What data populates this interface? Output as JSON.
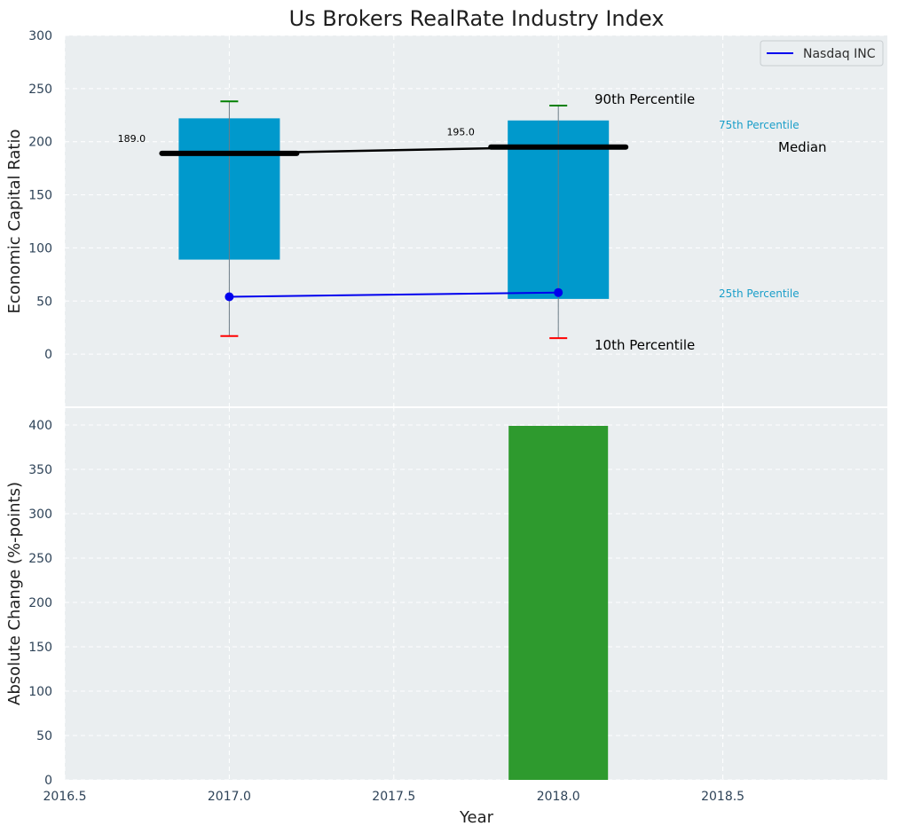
{
  "chart_data": [
    {
      "panel": "top",
      "type": "box-range",
      "title": "Us Brokers RealRate Industry Index",
      "ylabel": "Economic Capital Ratio",
      "ylim": [
        -50,
        300
      ],
      "yticks": [
        0,
        50,
        100,
        150,
        200,
        250,
        300
      ],
      "grid": true,
      "legend": {
        "entries": [
          "Nasdaq INC"
        ],
        "placement": "top-right"
      },
      "categories": [
        2017.0,
        2018.0
      ],
      "percentile_10": [
        17,
        15
      ],
      "percentile_25": [
        89,
        52
      ],
      "median": [
        189,
        195
      ],
      "percentile_75": [
        222,
        220
      ],
      "percentile_90": [
        238,
        234
      ],
      "median_labels": [
        "189.0",
        "195.0"
      ],
      "series": [
        {
          "name": "Nasdaq INC",
          "x": [
            2017.0,
            2018.0
          ],
          "values": [
            54,
            58
          ],
          "color": "#0000ee"
        }
      ],
      "annotations": {
        "p90": "90th Percentile",
        "p75": "75th Percentile",
        "median": "Median",
        "p25": "25th Percentile",
        "p10": "10th Percentile"
      }
    },
    {
      "panel": "bottom",
      "type": "bar",
      "xlabel": "Year",
      "ylabel": "Absolute Change (%-points)",
      "ylim": [
        0,
        420
      ],
      "yticks": [
        0,
        50,
        100,
        150,
        200,
        250,
        300,
        350,
        400
      ],
      "xlim": [
        2016.5,
        2019.0
      ],
      "xticks": [
        "2016.5",
        "2017.0",
        "2017.5",
        "2018.0",
        "2018.5"
      ],
      "grid": true,
      "x": [
        2018.0
      ],
      "values": [
        399
      ],
      "color": "#2e9a2e"
    }
  ],
  "colors": {
    "box": "#0099cc",
    "median": "#000000",
    "whisker_high": "#008000",
    "whisker_low": "#ff0000",
    "company_line": "#0000ee",
    "bar": "#2e9a2e",
    "panel_bg": "#eaeef0"
  }
}
